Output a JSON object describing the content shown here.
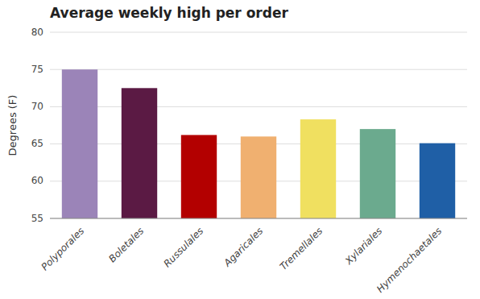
{
  "chart_data": {
    "type": "bar",
    "title": "Average weekly high per order",
    "ylabel": "Degrees (F)",
    "categories": [
      "Polyporales",
      "Boletales",
      "Russulales",
      "Agaricales",
      "Tremellales",
      "Xylariales",
      "Hymenochaetales"
    ],
    "values": [
      75.0,
      72.5,
      66.2,
      66.0,
      68.3,
      67.0,
      65.1
    ],
    "colors": [
      "#9b84b8",
      "#5b1a44",
      "#b30000",
      "#f0b070",
      "#f0e060",
      "#6baa8e",
      "#1f5fa6"
    ],
    "ylim": [
      55,
      80
    ],
    "yticks": [
      55,
      60,
      65,
      70,
      75,
      80
    ],
    "grid": true
  }
}
